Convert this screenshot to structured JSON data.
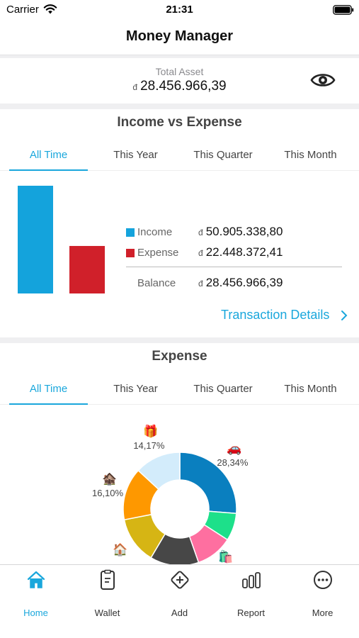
{
  "status_bar": {
    "carrier": "Carrier",
    "time": "21:31"
  },
  "nav": {
    "title": "Money Manager"
  },
  "total_asset": {
    "label": "Total Asset",
    "currency": "đ",
    "value": "28.456.966,39"
  },
  "income_expense": {
    "title": "Income vs Expense",
    "tabs": [
      "All Time",
      "This Year",
      "This Quarter",
      "This Month"
    ],
    "active_tab": 0,
    "rows": [
      {
        "label": "Income",
        "currency": "đ",
        "value": "50.905.338,80",
        "color": "#14a3dc"
      },
      {
        "label": "Expense",
        "currency": "đ",
        "value": "22.448.372,41",
        "color": "#d0202a"
      },
      {
        "label": "Balance",
        "currency": "đ",
        "value": "28.456.966,39"
      }
    ],
    "link": "Transaction Details",
    "chart_data": {
      "type": "bar",
      "categories": [
        "Income",
        "Expense"
      ],
      "values": [
        50905338.8,
        22448372.41
      ],
      "colors": [
        "#14a3dc",
        "#d0202a"
      ]
    }
  },
  "expense": {
    "title": "Expense",
    "tabs": [
      "All Time",
      "This Year",
      "This Quarter",
      "This Month"
    ],
    "active_tab": 0,
    "chart_data": {
      "type": "pie",
      "slices": [
        {
          "icon": "car-icon",
          "emoji": "🚗",
          "percent": 28.34,
          "label": "28,34%",
          "color": "#0a7fbf"
        },
        {
          "icon": "gear-icon",
          "emoji": "",
          "percent": 8.5,
          "label": "",
          "color": "#1de08a"
        },
        {
          "icon": "shopping-bags-icon",
          "emoji": "🛍️",
          "percent": 11.34,
          "label": "11,34%",
          "color": "#fe6fa0"
        },
        {
          "icon": "unknown-icon",
          "emoji": "",
          "percent": 15.0,
          "label": "",
          "color": "#474747"
        },
        {
          "icon": "house-icon",
          "emoji": "🏠",
          "percent": 14.5,
          "label": "",
          "color": "#d6b514"
        },
        {
          "icon": "house-repair-icon",
          "emoji": "🏚️",
          "percent": 16.1,
          "label": "16,10%",
          "color": "#fe9800"
        },
        {
          "icon": "gift-icon",
          "emoji": "🎁",
          "percent": 14.17,
          "label": "14,17%",
          "color": "#d3ecfb"
        }
      ]
    }
  },
  "tab_bar": {
    "items": [
      {
        "label": "Home",
        "icon": "home-icon"
      },
      {
        "label": "Wallet",
        "icon": "wallet-icon"
      },
      {
        "label": "Add",
        "icon": "add-icon"
      },
      {
        "label": "Report",
        "icon": "report-icon"
      },
      {
        "label": "More",
        "icon": "more-icon"
      }
    ],
    "active": 0
  }
}
